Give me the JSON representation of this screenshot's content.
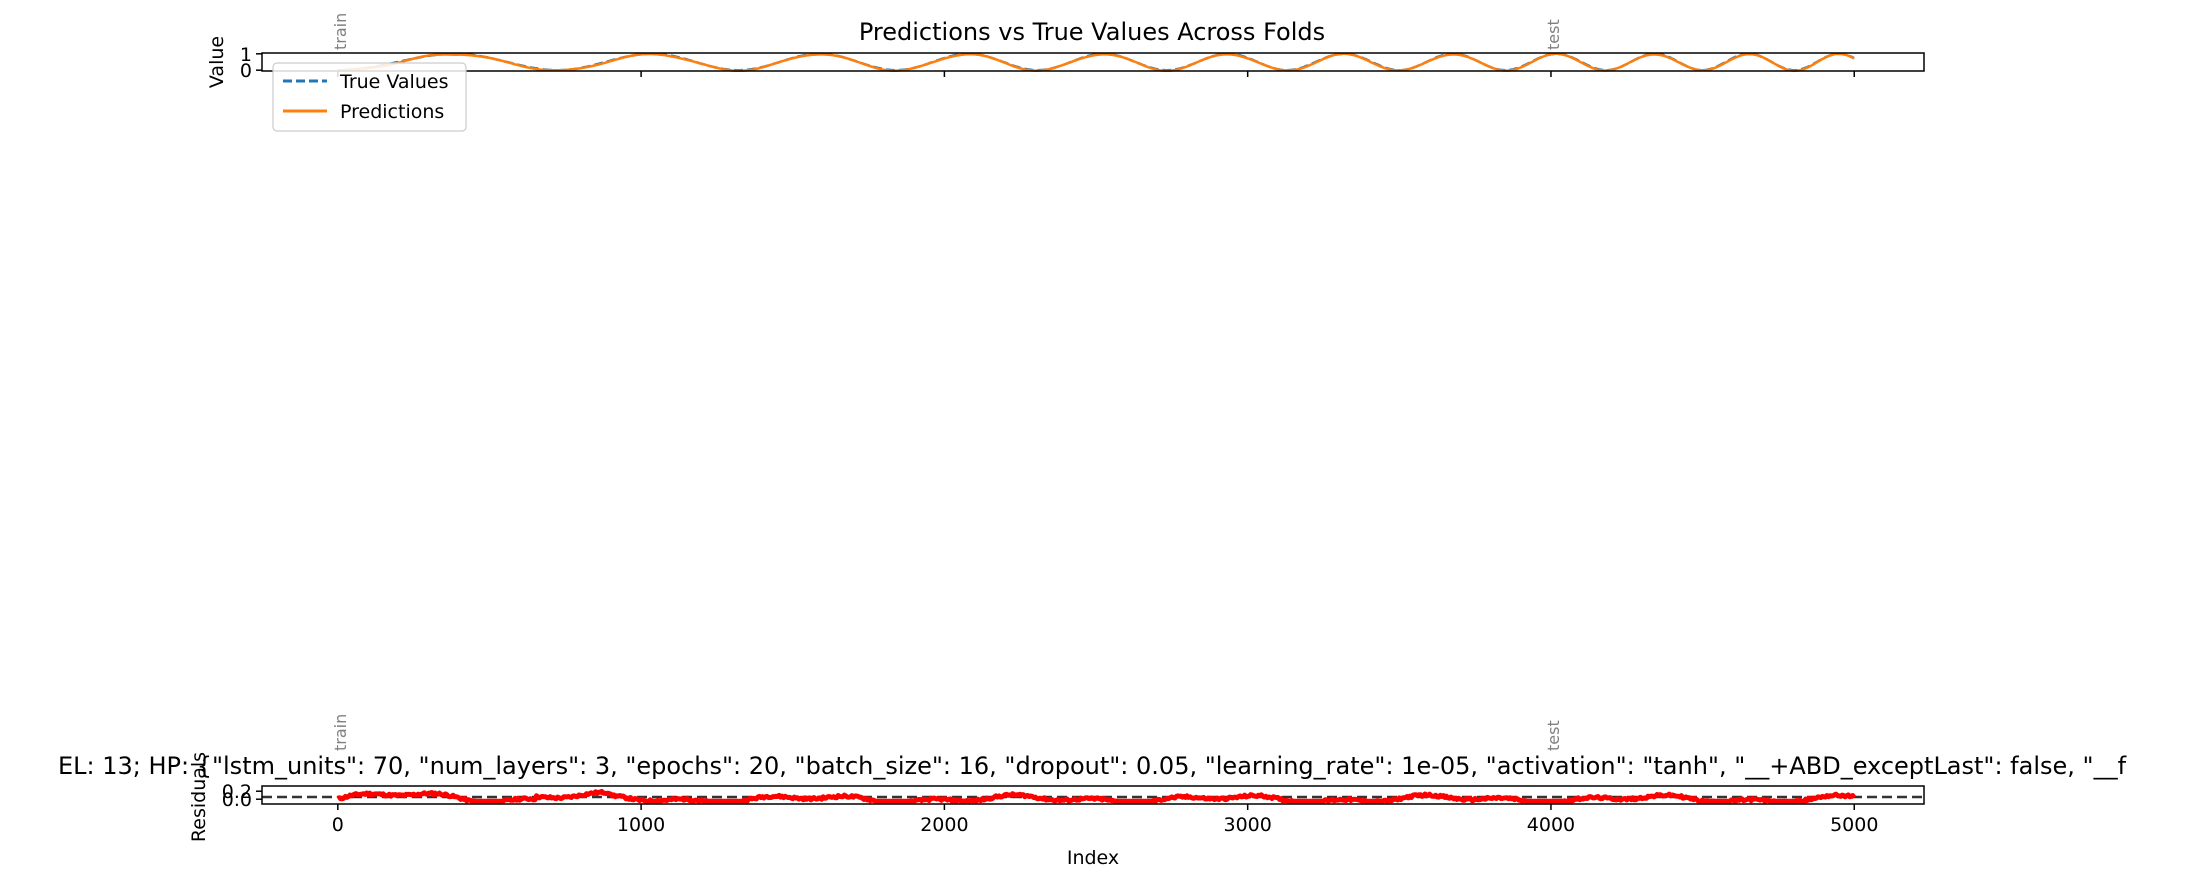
{
  "figure": {
    "top_title": "Predictions vs True Values Across Folds",
    "bottom_title": "EL: 13; HP: {\"lstm_units\": 70, \"num_layers\": 3, \"epochs\": 20, \"batch_size\": 16, \"dropout\": 0.05, \"learning_rate\": 1e-05, \"activation\": \"tanh\", \"__+ABD_exceptLast\": false, \"__f"
  },
  "chart_data": [
    {
      "type": "line",
      "title": "Predictions vs True Values Across Folds",
      "xlabel": "",
      "ylabel": "Value",
      "xlim": [
        -250,
        5230
      ],
      "ylim": [
        -0.05,
        1.05
      ],
      "yticks": [
        0,
        1
      ],
      "xticks": [
        0,
        1000,
        2000,
        3000,
        4000,
        5000
      ],
      "xtick_labels_visible": false,
      "grid": false,
      "legend": {
        "position": "upper-left",
        "entries": [
          "True Values",
          "Predictions"
        ]
      },
      "annotations": [
        {
          "text": "train",
          "x": 0
        },
        {
          "text": "test",
          "x": 4000
        }
      ],
      "series": [
        {
          "name": "True Values",
          "style": "dashed",
          "color": "#1f77b4",
          "x_range": [
            0,
            5000
          ],
          "wave": "0.5 + 0.5*sin(2*pi*t) with phase advancing as x^1.5 (period ~820 at x=0 to ~310 at x=5000)"
        },
        {
          "name": "Predictions",
          "style": "solid",
          "color": "#ff7f0e",
          "x_range": [
            0,
            5000
          ],
          "wave": "follows True Values closely"
        }
      ]
    },
    {
      "type": "line",
      "title": "EL: 13; HP: {\"lstm_units\": 70, \"num_layers\": 3, \"epochs\": 20, \"batch_size\": 16, \"dropout\": 0.05, \"learning_rate\": 1e-05, \"activation\": \"tanh\", \"__+ABD_exceptLast\": false, \"__f",
      "xlabel": "Index",
      "ylabel": "Residuals",
      "xlim": [
        -250,
        5230
      ],
      "ylim": [
        -0.12,
        0.33
      ],
      "yticks": [
        0.0,
        0.2
      ],
      "ytick_labels": [
        "0.0",
        "0.2"
      ],
      "xticks": [
        0,
        1000,
        2000,
        3000,
        4000,
        5000
      ],
      "xtick_labels": [
        "0",
        "1000",
        "2000",
        "3000",
        "4000",
        "5000"
      ],
      "grid": false,
      "reference_line": {
        "y": 0,
        "style": "dashed",
        "color": "#333333"
      },
      "annotations": [
        {
          "text": "train",
          "x": 0
        },
        {
          "text": "test",
          "x": 4000
        }
      ],
      "series": [
        {
          "name": "",
          "style": "solid-thick",
          "color": "#ff0000",
          "x_range": [
            0,
            5000
          ],
          "y_range": [
            -0.05,
            0.22
          ]
        }
      ]
    }
  ],
  "colors": {
    "true_values": "#1f77b4",
    "predictions": "#ff7f0e",
    "residuals": "#ff0000",
    "zero_line": "#333333",
    "annotation": "#808080"
  }
}
